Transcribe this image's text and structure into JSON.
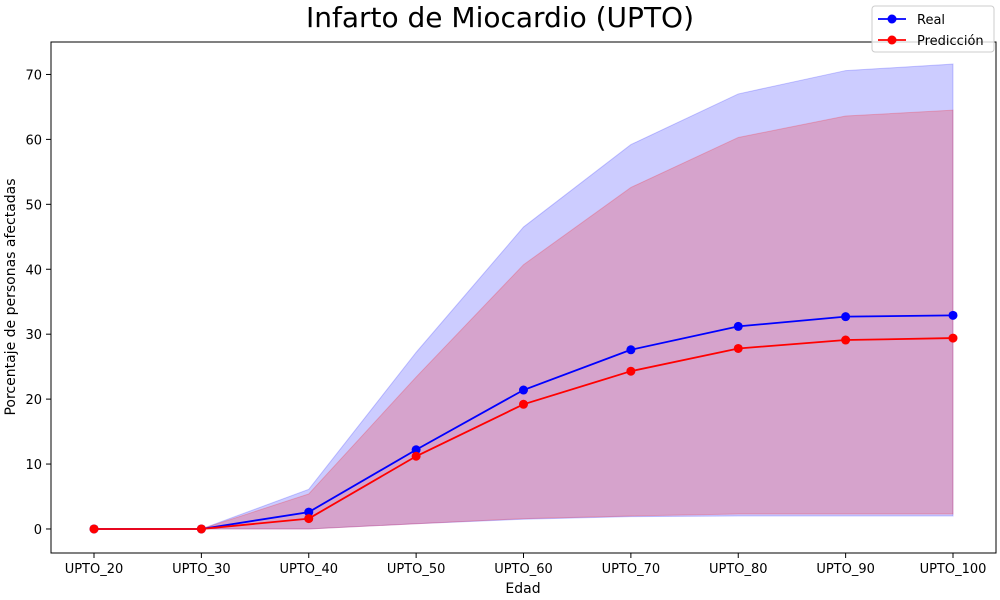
{
  "chart_data": {
    "type": "line",
    "title": "Infarto de Miocardio (UPTO)",
    "xlabel": "Edad",
    "ylabel": "Porcentaje de personas afectadas",
    "categories": [
      "UPTO_20",
      "UPTO_30",
      "UPTO_40",
      "UPTO_50",
      "UPTO_60",
      "UPTO_70",
      "UPTO_80",
      "UPTO_90",
      "UPTO_100"
    ],
    "ylim": [
      -3.7,
      75
    ],
    "yticks": [
      0,
      10,
      20,
      30,
      40,
      50,
      60,
      70
    ],
    "grid": false,
    "legend_position": "top-right",
    "series": [
      {
        "name": "Real",
        "color": "#0000ff",
        "values": [
          0,
          0,
          2.6,
          12.2,
          21.4,
          27.6,
          31.2,
          32.7,
          32.9
        ],
        "band_upper": [
          0,
          0,
          6.1,
          27.2,
          46.5,
          59.2,
          67.0,
          70.6,
          71.6
        ],
        "band_lower": [
          0,
          0,
          0,
          0.8,
          1.5,
          1.9,
          2.0,
          2.0,
          2.0
        ],
        "band_color": "#0000ff"
      },
      {
        "name": "Predicción",
        "color": "#ff0000",
        "values": [
          0,
          0,
          1.6,
          11.2,
          19.2,
          24.3,
          27.8,
          29.1,
          29.4
        ],
        "band_upper": [
          0,
          0,
          5.4,
          23.4,
          40.7,
          52.6,
          60.3,
          63.6,
          64.5
        ],
        "band_lower": [
          0,
          0,
          0,
          0.8,
          1.6,
          2.0,
          2.3,
          2.3,
          2.3
        ],
        "band_color": "#ff0000"
      }
    ]
  }
}
